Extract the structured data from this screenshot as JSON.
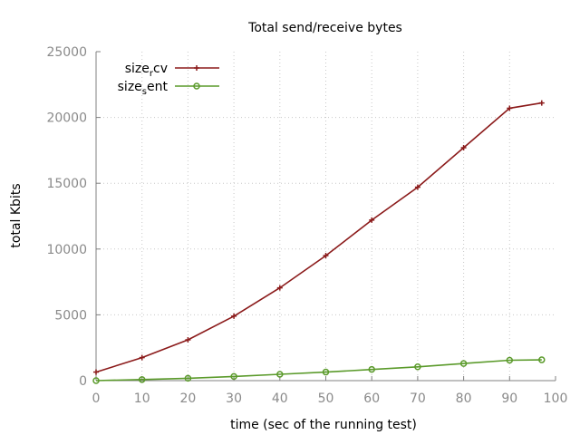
{
  "chart_data": {
    "type": "line",
    "title": "Total send/receive bytes",
    "xlabel": "time (sec of the running test)",
    "ylabel": "total Kbits",
    "xlim": [
      0,
      100
    ],
    "ylim": [
      0,
      25000
    ],
    "xticks": [
      0,
      10,
      20,
      30,
      40,
      50,
      60,
      70,
      80,
      90,
      100
    ],
    "yticks": [
      0,
      5000,
      10000,
      15000,
      20000,
      25000
    ],
    "grid": true,
    "legend_position": "top-left",
    "series": [
      {
        "name": "size_rcv",
        "legend": {
          "base": "size",
          "sub": "r",
          "rest": "cv"
        },
        "color": "#8b1a1a",
        "marker": "plus",
        "x": [
          0,
          10,
          20,
          30,
          40,
          50,
          60,
          70,
          80,
          90,
          97
        ],
        "y": [
          650,
          1750,
          3100,
          4900,
          7050,
          9500,
          12200,
          14700,
          17700,
          20700,
          21100
        ]
      },
      {
        "name": "size_sent",
        "legend": {
          "base": "size",
          "sub": "s",
          "rest": "ent"
        },
        "color": "#5a9a2a",
        "marker": "circle",
        "x": [
          0,
          10,
          20,
          30,
          40,
          50,
          60,
          70,
          80,
          90,
          97
        ],
        "y": [
          0,
          80,
          180,
          320,
          480,
          650,
          850,
          1050,
          1300,
          1550,
          1580
        ]
      }
    ]
  }
}
